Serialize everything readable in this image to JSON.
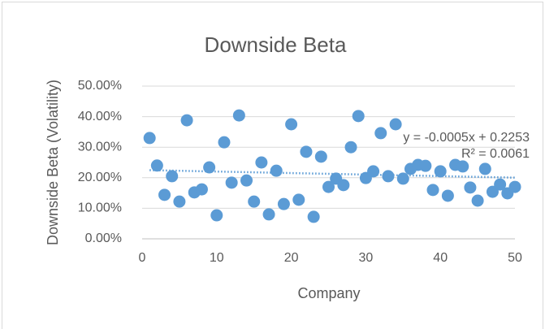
{
  "chart_data": {
    "type": "scatter",
    "title": "Downside Beta",
    "x_label": "Company",
    "y_label": "Downside Beta (Volatility)",
    "x": [
      1,
      2,
      3,
      4,
      5,
      6,
      7,
      8,
      9,
      10,
      11,
      12,
      13,
      14,
      15,
      16,
      17,
      18,
      19,
      20,
      21,
      22,
      23,
      24,
      25,
      26,
      27,
      28,
      29,
      30,
      31,
      32,
      33,
      34,
      35,
      36,
      37,
      38,
      39,
      40,
      41,
      42,
      43,
      44,
      45,
      46,
      47,
      48,
      49,
      50
    ],
    "values": [
      0.33,
      0.24,
      0.144,
      0.205,
      0.122,
      0.388,
      0.152,
      0.162,
      0.234,
      0.077,
      0.316,
      0.184,
      0.404,
      0.191,
      0.122,
      0.25,
      0.08,
      0.223,
      0.114,
      0.375,
      0.128,
      0.285,
      0.072,
      0.269,
      0.17,
      0.197,
      0.176,
      0.3,
      0.402,
      0.199,
      0.221,
      0.346,
      0.205,
      0.375,
      0.197,
      0.229,
      0.242,
      0.239,
      0.16,
      0.221,
      0.141,
      0.242,
      0.237,
      0.168,
      0.125,
      0.229,
      0.154,
      0.178,
      0.149,
      0.17
    ],
    "color": "#5b9bd5",
    "xlim": [
      0,
      50
    ],
    "xticks": [
      0,
      10,
      20,
      30,
      40,
      50
    ],
    "ylim": [
      0,
      0.5
    ],
    "yticks": [
      {
        "value": 0,
        "label": "0.00%"
      },
      {
        "value": 0.1,
        "label": "10.00%"
      },
      {
        "value": 0.2,
        "label": "20.00%"
      },
      {
        "value": 0.3,
        "label": "30.00%"
      },
      {
        "value": 0.4,
        "label": "40.00%"
      },
      {
        "value": 0.5,
        "label": "50.00%"
      }
    ],
    "grid": true,
    "trendline": {
      "slope": -0.0005,
      "intercept": 0.2253,
      "equation": "y = -0.0005x + 0.2253",
      "r2": "R² = 0.0061"
    }
  }
}
